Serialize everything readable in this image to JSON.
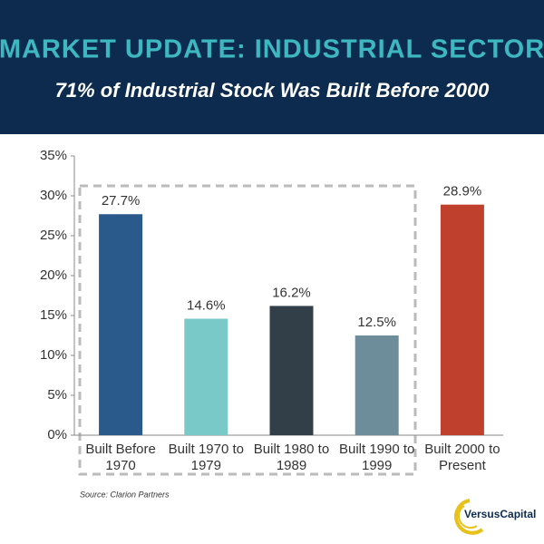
{
  "header": {
    "title": "MARKET UPDATE: INDUSTRIAL SECTOR",
    "subtitle": "71% of Industrial Stock Was Built Before 2000"
  },
  "chart_data": {
    "type": "bar",
    "categories": [
      [
        "Built Before",
        "1970"
      ],
      [
        "Built 1970 to",
        "1979"
      ],
      [
        "Built 1980 to",
        "1989"
      ],
      [
        "Built 1990 to",
        "1999"
      ],
      [
        "Built 2000 to",
        "Present"
      ]
    ],
    "values": [
      27.7,
      14.6,
      16.2,
      12.5,
      28.9
    ],
    "value_labels": [
      "27.7%",
      "14.6%",
      "16.2%",
      "12.5%",
      "28.9%"
    ],
    "colors": [
      "#2a5a8c",
      "#7ac9c9",
      "#333f48",
      "#6e8d9b",
      "#c0402e"
    ],
    "ylim": [
      0,
      35
    ],
    "yticks": [
      {
        "value": 0,
        "label": "0%"
      },
      {
        "value": 5,
        "label": "5%"
      },
      {
        "value": 10,
        "label": "10%"
      },
      {
        "value": 15,
        "label": "15%"
      },
      {
        "value": 20,
        "label": "20%"
      },
      {
        "value": 25,
        "label": "25%"
      },
      {
        "value": 30,
        "label": "30%"
      },
      {
        "value": 35,
        "label": "35%"
      }
    ]
  },
  "source": "Source: Clarion Partners",
  "logo": "VersusCapital"
}
